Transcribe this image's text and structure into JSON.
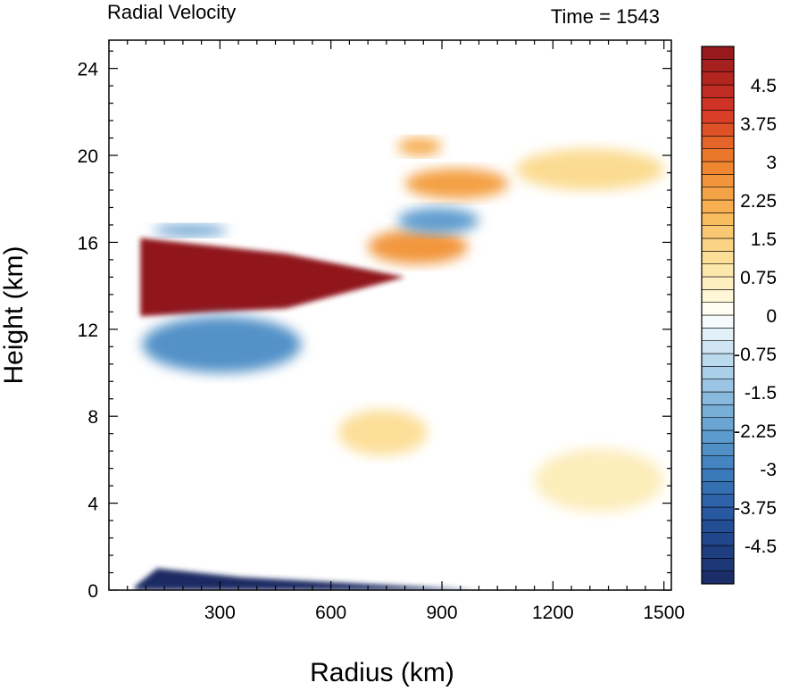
{
  "chart_data": {
    "type": "heatmap",
    "title_left": "Radial Velocity",
    "title_right": "Time = 1543",
    "xlabel": "Radius (km)",
    "ylabel": "Height (km)",
    "xlim": [
      0,
      1520
    ],
    "ylim": [
      0,
      25.3
    ],
    "x_ticks": [
      300,
      600,
      900,
      1200,
      1500
    ],
    "y_ticks": [
      0,
      4,
      8,
      12,
      16,
      20,
      24
    ],
    "x_tick_labels": [
      "300",
      "600",
      "900",
      "1200",
      "1500"
    ],
    "y_tick_labels": [
      "0",
      "4",
      "8",
      "12",
      "16",
      "20",
      "24"
    ],
    "colorbar": {
      "min": -5.25,
      "max": 5.25,
      "step": 0.25,
      "labels": [
        {
          "value": 4.5,
          "text": "4.5"
        },
        {
          "value": 3.75,
          "text": "3.75"
        },
        {
          "value": 3,
          "text": "3"
        },
        {
          "value": 2.25,
          "text": "2.25"
        },
        {
          "value": 1.5,
          "text": "1.5"
        },
        {
          "value": 0.75,
          "text": "0.75"
        },
        {
          "value": 0,
          "text": "0"
        },
        {
          "value": -0.75,
          "text": "-0.75"
        },
        {
          "value": -1.5,
          "text": "-1.5"
        },
        {
          "value": -2.25,
          "text": "-2.25"
        },
        {
          "value": -3,
          "text": "-3"
        },
        {
          "value": -3.75,
          "text": "-3.75"
        },
        {
          "value": -4.5,
          "text": "-4.5"
        }
      ]
    },
    "features": [
      {
        "name": "upper-outflow-core",
        "r": [
          85,
          800
        ],
        "z": [
          12.6,
          16.2
        ],
        "value": 5.5
      },
      {
        "name": "outflow-tongue",
        "r": [
          700,
          970
        ],
        "z": [
          15.0,
          16.6
        ],
        "value": 2.6
      },
      {
        "name": "upper-outflow-layer-2",
        "r": [
          800,
          1080
        ],
        "z": [
          18.0,
          19.4
        ],
        "value": 2.4
      },
      {
        "name": "upper-outflow-layer-3",
        "r": [
          780,
          900
        ],
        "z": [
          20.0,
          20.8
        ],
        "value": 2.2
      },
      {
        "name": "outer-outflow-lobe",
        "r": [
          1100,
          1500
        ],
        "z": [
          18.4,
          20.3
        ],
        "value": 1.2
      },
      {
        "name": "inflow-below-outflow",
        "r": [
          90,
          520
        ],
        "z": [
          10.0,
          12.6
        ],
        "value": -2.6
      },
      {
        "name": "inflow-above-outflow",
        "r": [
          120,
          320
        ],
        "z": [
          16.3,
          16.8
        ],
        "value": -2.4
      },
      {
        "name": "inflow-band-upper",
        "r": [
          780,
          1000
        ],
        "z": [
          16.4,
          17.6
        ],
        "value": -2.3
      },
      {
        "name": "boundary-layer-inflow",
        "r": [
          70,
          1000
        ],
        "z": [
          0.0,
          1.0
        ],
        "value": -5.5
      },
      {
        "name": "mid-level-outflow",
        "r": [
          620,
          860
        ],
        "z": [
          6.2,
          8.3
        ],
        "value": 1.1
      },
      {
        "name": "lower-outer-outflow",
        "r": [
          1150,
          1500
        ],
        "z": [
          3.6,
          6.5
        ],
        "value": 0.7
      }
    ]
  }
}
